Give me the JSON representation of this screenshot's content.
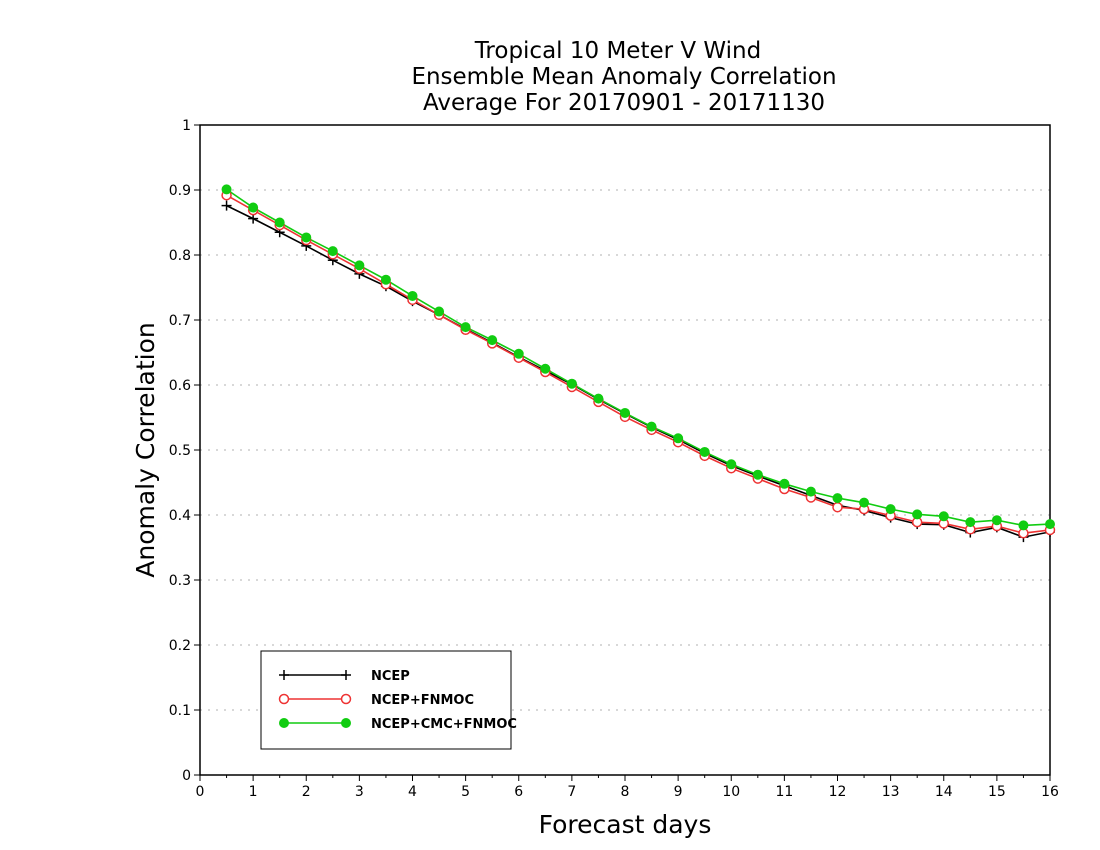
{
  "chart_data": {
    "type": "line",
    "title": [
      "Tropical 10 Meter V Wind",
      "Ensemble Mean Anomaly Correlation",
      "Average For 20170901 - 20171130"
    ],
    "xlabel": "Forecast days",
    "ylabel": "Anomaly Correlation",
    "xlim": [
      0,
      16
    ],
    "ylim": [
      0,
      1
    ],
    "xticks": [
      "0",
      "1",
      "2",
      "3",
      "4",
      "5",
      "6",
      "7",
      "8",
      "9",
      "10",
      "11",
      "12",
      "13",
      "14",
      "15",
      "16"
    ],
    "yticks": [
      "0",
      "0.1",
      "0.2",
      "0.3",
      "0.4",
      "0.5",
      "0.6",
      "0.7",
      "0.8",
      "0.9",
      "1"
    ],
    "grid": true,
    "legend_position": "bottom-left",
    "x": [
      0.5,
      1,
      1.5,
      2,
      2.5,
      3,
      3.5,
      4,
      4.5,
      5,
      5.5,
      6,
      6.5,
      7,
      7.5,
      8,
      8.5,
      9,
      9.5,
      10,
      10.5,
      11,
      11.5,
      12,
      12.5,
      13,
      13.5,
      14,
      14.5,
      15,
      15.5,
      16
    ],
    "series": [
      {
        "name": "NCEP",
        "color": "#000000",
        "marker": "plus",
        "values": [
          0.876,
          0.856,
          0.835,
          0.814,
          0.792,
          0.771,
          0.752,
          0.729,
          0.708,
          0.686,
          0.665,
          0.643,
          0.622,
          0.601,
          0.578,
          0.556,
          0.535,
          0.516,
          0.495,
          0.476,
          0.46,
          0.445,
          0.43,
          0.415,
          0.407,
          0.396,
          0.386,
          0.385,
          0.373,
          0.381,
          0.366,
          0.374
        ]
      },
      {
        "name": "NCEP+FNMOC",
        "color": "#ee3333",
        "marker": "open-circle",
        "values": [
          0.892,
          0.869,
          0.846,
          0.823,
          0.801,
          0.779,
          0.755,
          0.731,
          0.708,
          0.685,
          0.664,
          0.642,
          0.62,
          0.597,
          0.574,
          0.551,
          0.531,
          0.512,
          0.491,
          0.472,
          0.456,
          0.44,
          0.427,
          0.412,
          0.409,
          0.399,
          0.389,
          0.387,
          0.378,
          0.383,
          0.372,
          0.377
        ]
      },
      {
        "name": "NCEP+CMC+FNMOC",
        "color": "#11cc11",
        "marker": "filled-circle",
        "values": [
          0.901,
          0.873,
          0.85,
          0.827,
          0.806,
          0.784,
          0.762,
          0.737,
          0.713,
          0.689,
          0.669,
          0.648,
          0.625,
          0.602,
          0.579,
          0.557,
          0.536,
          0.518,
          0.497,
          0.478,
          0.462,
          0.448,
          0.436,
          0.426,
          0.419,
          0.409,
          0.401,
          0.398,
          0.389,
          0.392,
          0.384,
          0.386
        ]
      }
    ]
  }
}
